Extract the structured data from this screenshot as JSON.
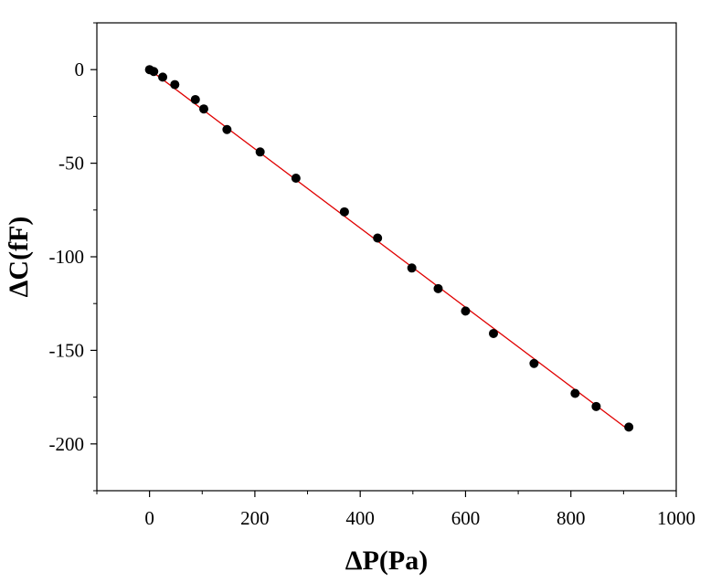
{
  "chart_data": {
    "type": "scatter",
    "title": "",
    "xlabel": "ΔP(Pa)",
    "ylabel": "ΔC(fF)",
    "xlim": [
      -100,
      1000
    ],
    "ylim": [
      -225,
      25
    ],
    "xticks": [
      0,
      200,
      400,
      600,
      800,
      1000
    ],
    "xtick_labels": [
      "0",
      "200",
      "400",
      "600",
      "800",
      "1000"
    ],
    "yticks": [
      0,
      -50,
      -100,
      -150,
      -200
    ],
    "ytick_labels": [
      "0",
      "-50",
      "-100",
      "-150",
      "-200"
    ],
    "grid": false,
    "series": [
      {
        "kind": "scatter",
        "color": "#000000",
        "points": [
          [
            0,
            0
          ],
          [
            8,
            -1
          ],
          [
            25,
            -4
          ],
          [
            48,
            -8
          ],
          [
            87,
            -16
          ],
          [
            103,
            -21
          ],
          [
            147,
            -32
          ],
          [
            210,
            -44
          ],
          [
            278,
            -58
          ],
          [
            370,
            -76
          ],
          [
            433,
            -90
          ],
          [
            498,
            -106
          ],
          [
            548,
            -117
          ],
          [
            600,
            -129
          ],
          [
            653,
            -141
          ],
          [
            730,
            -157
          ],
          [
            808,
            -173
          ],
          [
            848,
            -180
          ],
          [
            910,
            -191
          ]
        ]
      },
      {
        "kind": "line",
        "color": "#e00000",
        "points": [
          [
            0,
            0
          ],
          [
            912,
            -193
          ]
        ]
      }
    ]
  }
}
